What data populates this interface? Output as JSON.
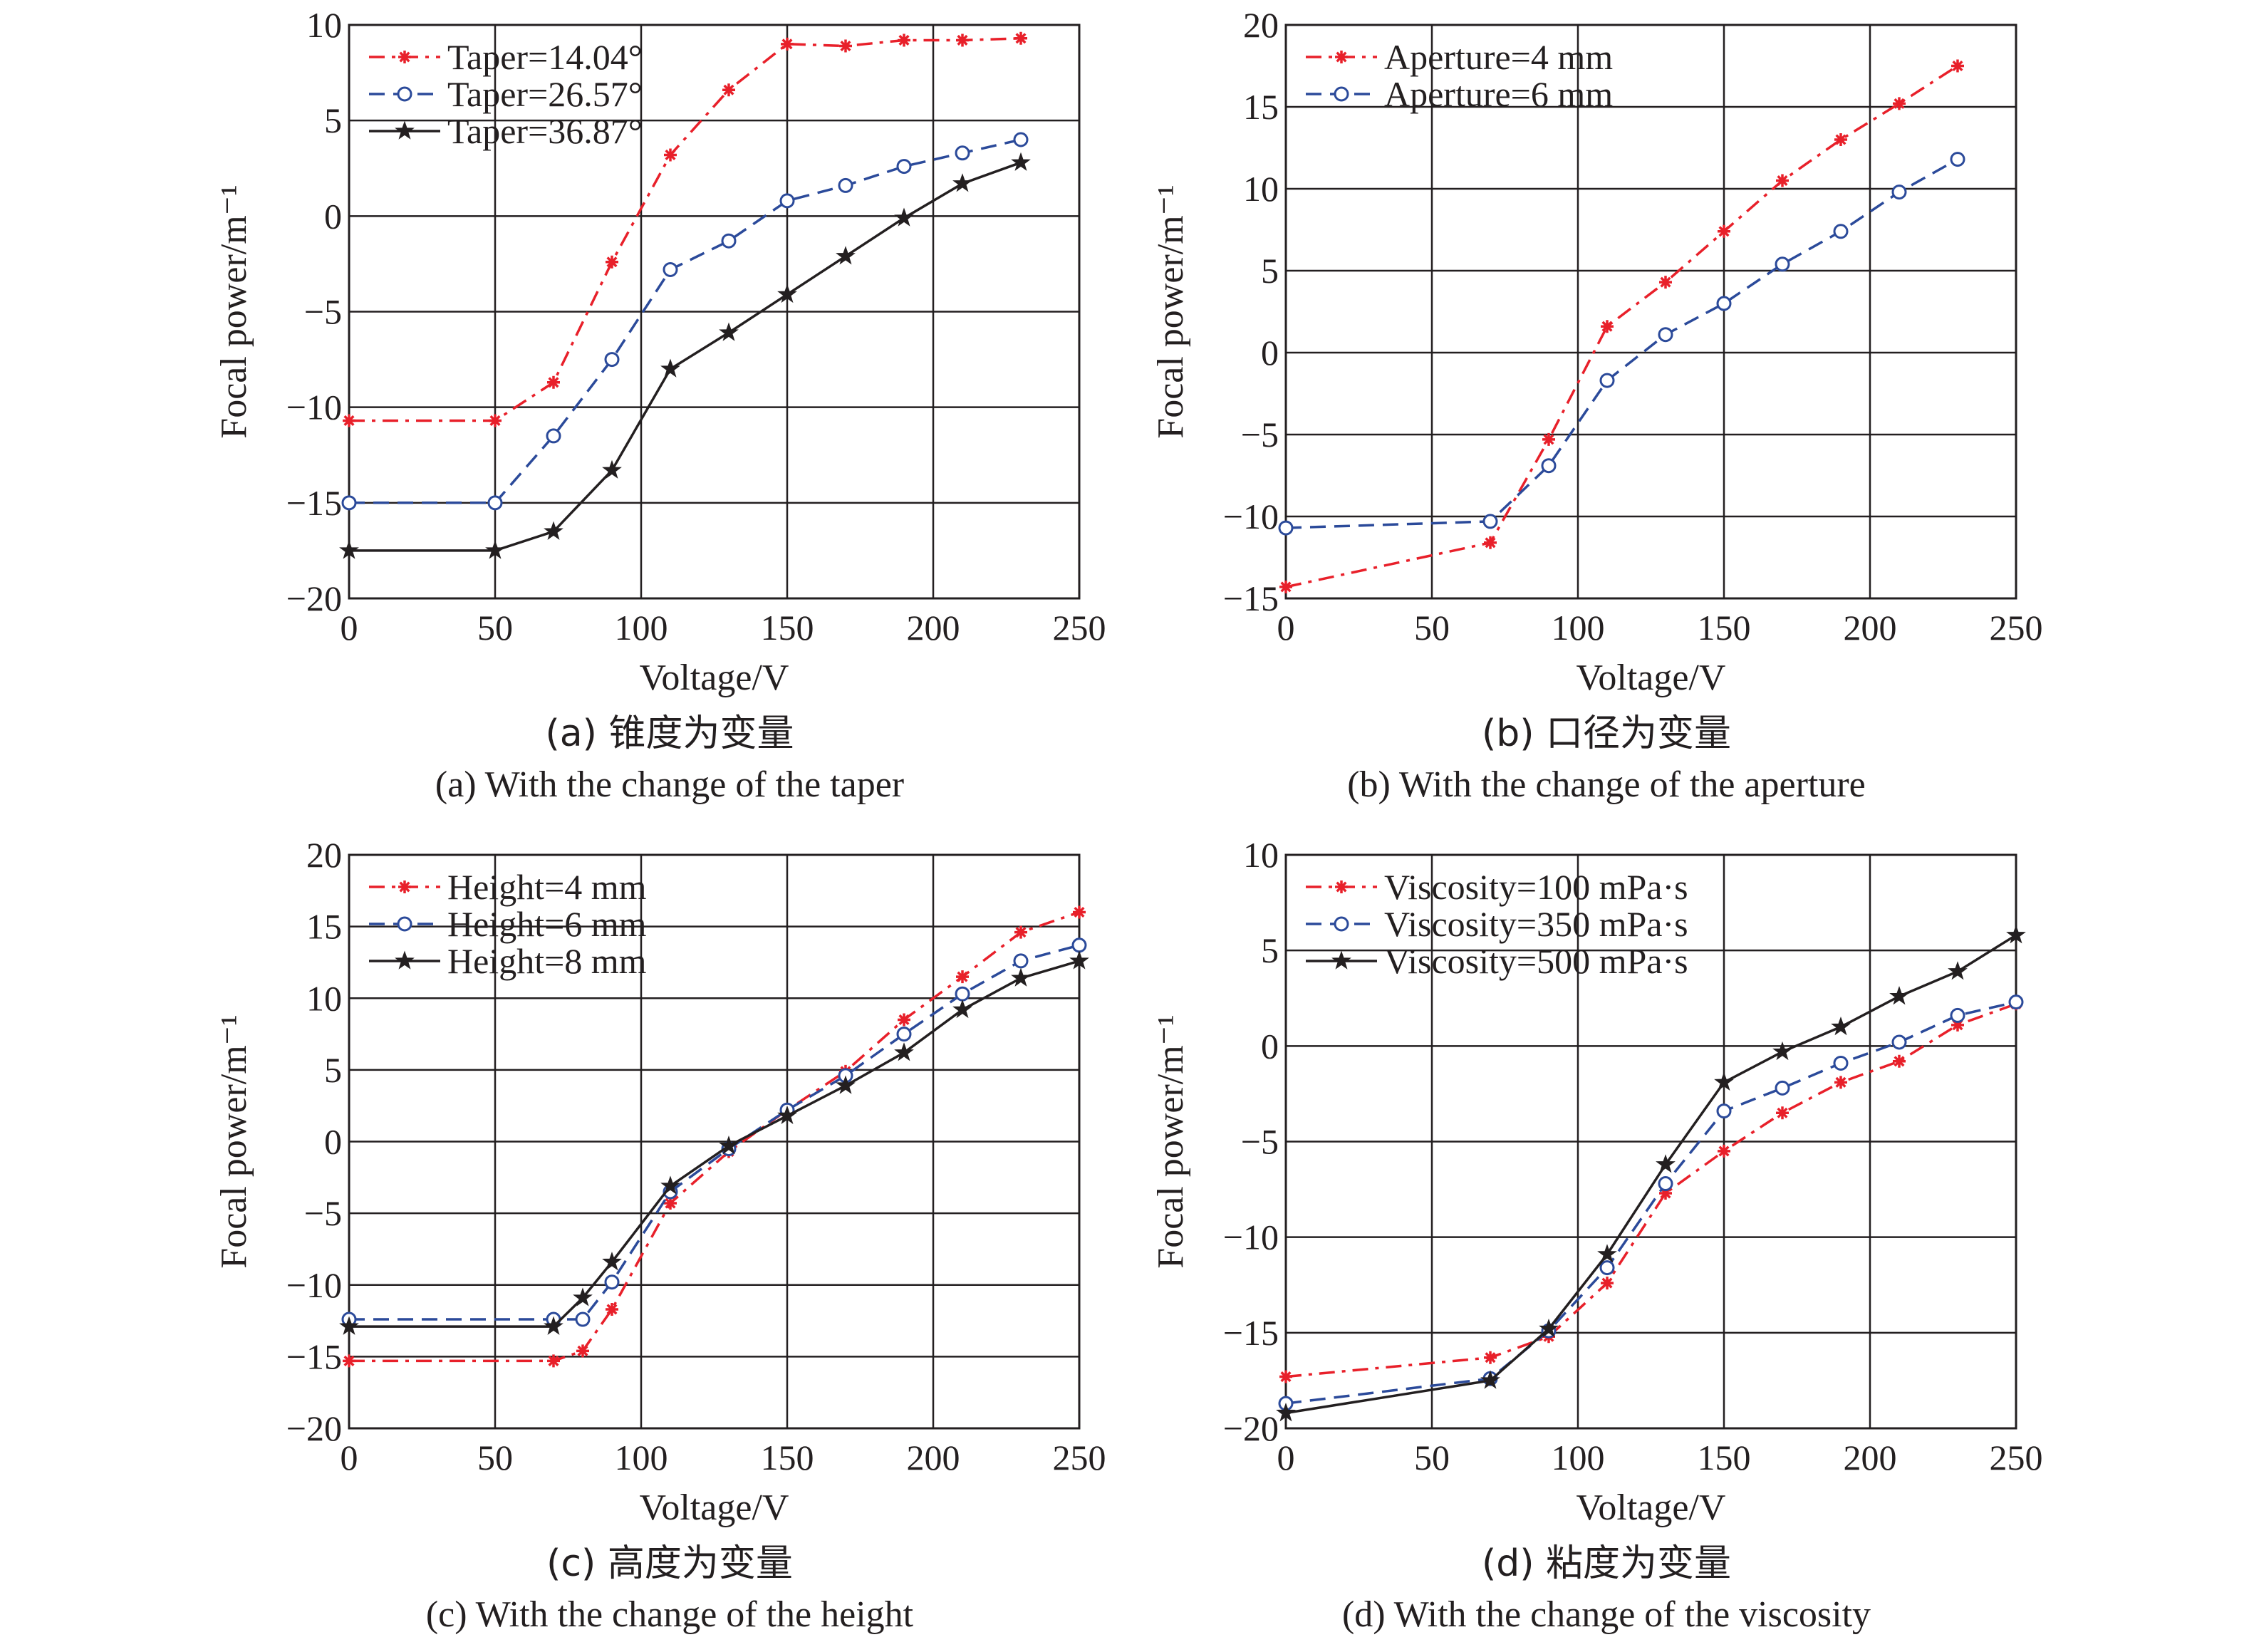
{
  "chart_data": [
    {
      "type": "line",
      "caption_cn": "(a) 锥度为变量",
      "caption_en": "(a) With the change of the taper",
      "xlabel": "Voltage/V",
      "ylabel": "Focal power/m⁻¹",
      "xlim": [
        0,
        250
      ],
      "ylim": [
        -20,
        10
      ],
      "xticks": [
        0,
        50,
        100,
        150,
        200,
        250
      ],
      "yticks": [
        -20,
        -15,
        -10,
        -5,
        0,
        5,
        10
      ],
      "grid": true,
      "legend_position": "top-left",
      "series": [
        {
          "name": "Taper=14.04°",
          "color": "#e8202a",
          "dash": "dashdot",
          "marker": "asterisk",
          "x": [
            0,
            50,
            70,
            90,
            110,
            130,
            150,
            170,
            190,
            210,
            230
          ],
          "y": [
            -10.7,
            -10.7,
            -8.7,
            -2.4,
            3.2,
            6.6,
            9.0,
            8.9,
            9.2,
            9.2,
            9.3
          ]
        },
        {
          "name": "Taper=26.57°",
          "color": "#2b4a9a",
          "dash": "dashed",
          "marker": "circle",
          "x": [
            0,
            50,
            70,
            90,
            110,
            130,
            150,
            170,
            190,
            210,
            230
          ],
          "y": [
            -15.0,
            -15.0,
            -11.5,
            -7.5,
            -2.8,
            -1.3,
            0.8,
            1.6,
            2.6,
            3.3,
            4.0
          ]
        },
        {
          "name": "Taper=36.87°",
          "color": "#231f20",
          "dash": "solid",
          "marker": "star",
          "x": [
            0,
            50,
            70,
            90,
            110,
            130,
            150,
            170,
            190,
            210,
            230
          ],
          "y": [
            -17.5,
            -17.5,
            -16.5,
            -13.3,
            -8.0,
            -6.1,
            -4.1,
            -2.1,
            -0.1,
            1.7,
            2.8
          ]
        }
      ]
    },
    {
      "type": "line",
      "caption_cn": "(b) 口径为变量",
      "caption_en": "(b) With the change of the aperture",
      "xlabel": "Voltage/V",
      "ylabel": "Focal power/m⁻¹",
      "xlim": [
        0,
        250
      ],
      "ylim": [
        -15,
        20
      ],
      "xticks": [
        0,
        50,
        100,
        150,
        200,
        250
      ],
      "yticks": [
        -15,
        -10,
        -5,
        0,
        5,
        10,
        15,
        20
      ],
      "grid": true,
      "legend_position": "top-left",
      "series": [
        {
          "name": "Aperture=4 mm",
          "color": "#e8202a",
          "dash": "dashdot",
          "marker": "asterisk",
          "x": [
            0,
            70,
            90,
            110,
            130,
            150,
            170,
            190,
            210,
            230
          ],
          "y": [
            -14.3,
            -11.6,
            -5.3,
            1.6,
            4.3,
            7.4,
            10.5,
            13.0,
            15.2,
            17.5
          ]
        },
        {
          "name": "Aperture=6 mm",
          "color": "#2b4a9a",
          "dash": "dashed",
          "marker": "circle",
          "x": [
            0,
            70,
            90,
            110,
            130,
            150,
            170,
            190,
            210,
            230
          ],
          "y": [
            -10.7,
            -10.3,
            -6.9,
            -1.7,
            1.1,
            3.0,
            5.4,
            7.4,
            9.8,
            11.8
          ]
        }
      ]
    },
    {
      "type": "line",
      "caption_cn": "(c) 高度为变量",
      "caption_en": "(c) With the change of the height",
      "xlabel": "Voltage/V",
      "ylabel": "Focal power/m⁻¹",
      "xlim": [
        0,
        250
      ],
      "ylim": [
        -20,
        20
      ],
      "xticks": [
        0,
        50,
        100,
        150,
        200,
        250
      ],
      "yticks": [
        -20,
        -15,
        -10,
        -5,
        0,
        5,
        10,
        15,
        20
      ],
      "grid": true,
      "legend_position": "top-left",
      "series": [
        {
          "name": "Height=4 mm",
          "color": "#e8202a",
          "dash": "dashdot",
          "marker": "asterisk",
          "x": [
            0,
            70,
            80,
            90,
            110,
            130,
            150,
            170,
            190,
            210,
            230,
            250
          ],
          "y": [
            -15.3,
            -15.3,
            -14.6,
            -11.7,
            -4.3,
            -0.7,
            2.2,
            4.9,
            8.5,
            11.5,
            14.6,
            16.0
          ]
        },
        {
          "name": "Height=6 mm",
          "color": "#2b4a9a",
          "dash": "dashed",
          "marker": "circle",
          "x": [
            0,
            70,
            80,
            90,
            110,
            130,
            150,
            170,
            190,
            210,
            230,
            250
          ],
          "y": [
            -12.4,
            -12.4,
            -12.4,
            -9.8,
            -3.5,
            -0.5,
            2.2,
            4.6,
            7.5,
            10.3,
            12.6,
            13.7
          ]
        },
        {
          "name": "Height=8 mm",
          "color": "#231f20",
          "dash": "solid",
          "marker": "star",
          "x": [
            0,
            70,
            80,
            90,
            110,
            130,
            150,
            170,
            190,
            210,
            230,
            250
          ],
          "y": [
            -12.9,
            -12.9,
            -10.9,
            -8.4,
            -3.1,
            -0.3,
            1.8,
            3.9,
            6.2,
            9.2,
            11.4,
            12.6
          ]
        }
      ]
    },
    {
      "type": "line",
      "caption_cn": "(d) 粘度为变量",
      "caption_en": "(d) With the change of the viscosity",
      "xlabel": "Voltage/V",
      "ylabel": "Focal power/m⁻¹",
      "xlim": [
        0,
        250
      ],
      "ylim": [
        -20,
        10
      ],
      "xticks": [
        0,
        50,
        100,
        150,
        200,
        250
      ],
      "yticks": [
        -20,
        -15,
        -10,
        -5,
        0,
        5,
        10
      ],
      "grid": true,
      "legend_position": "top-left",
      "series": [
        {
          "name": "Viscosity=100 mPa·s",
          "color": "#e8202a",
          "dash": "dashdot",
          "marker": "asterisk",
          "x": [
            0,
            70,
            90,
            110,
            130,
            150,
            170,
            190,
            210,
            230,
            250
          ],
          "y": [
            -17.3,
            -16.3,
            -15.2,
            -12.4,
            -7.7,
            -5.5,
            -3.5,
            -1.9,
            -0.8,
            1.1,
            2.2
          ]
        },
        {
          "name": "Viscosity=350 mPa·s",
          "color": "#2b4a9a",
          "dash": "dashed",
          "marker": "circle",
          "x": [
            0,
            70,
            90,
            110,
            130,
            150,
            170,
            190,
            210,
            230,
            250
          ],
          "y": [
            -18.7,
            -17.4,
            -14.9,
            -11.6,
            -7.2,
            -3.4,
            -2.2,
            -0.9,
            0.2,
            1.6,
            2.3
          ]
        },
        {
          "name": "Viscosity=500 mPa·s",
          "color": "#231f20",
          "dash": "solid",
          "marker": "star",
          "x": [
            0,
            70,
            90,
            110,
            130,
            150,
            170,
            190,
            210,
            230,
            250
          ],
          "y": [
            -19.2,
            -17.5,
            -14.8,
            -10.9,
            -6.2,
            -1.9,
            -0.3,
            1.0,
            2.6,
            3.9,
            5.8
          ]
        }
      ]
    }
  ]
}
